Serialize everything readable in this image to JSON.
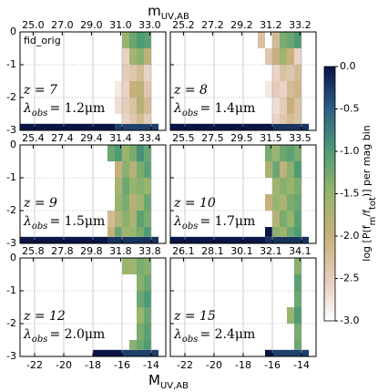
{
  "figure": {
    "x_label": {
      "main": "M",
      "sub": "UV,AB"
    },
    "top_label": {
      "main": "m",
      "sub": "UV,AB"
    },
    "colorscale": [
      [
        -3,
        "#ffffff"
      ],
      [
        -2.6,
        "#ead3c6"
      ],
      [
        -2.0,
        "#c8b07c"
      ],
      [
        -1.5,
        "#97b56c"
      ],
      [
        -1.0,
        "#4f9c74"
      ],
      [
        -0.5,
        "#2c5f86"
      ],
      [
        0,
        "#0a1446"
      ]
    ],
    "colorbar": {
      "clim": [
        -3,
        0
      ],
      "ticks": [
        {
          "value": 0,
          "label": "0.0"
        },
        {
          "value": -0.5,
          "label": "-0.5"
        },
        {
          "value": -1,
          "label": "-1.0"
        },
        {
          "value": -1.5,
          "label": "-1.5"
        },
        {
          "value": -2,
          "label": "-2.0"
        },
        {
          "value": -2.5,
          "label": "-2.5"
        },
        {
          "value": -3,
          "label": "-3.0"
        }
      ],
      "label": [
        {
          "text": "log [P(f"
        },
        {
          "text": "m",
          "sub": true
        },
        {
          "text": "/f"
        },
        {
          "text": "tot",
          "sub": true
        },
        {
          "text": ")] per mag bin"
        }
      ]
    }
  },
  "chart_data": [
    {
      "type": "heatmap",
      "note_label": "fid_orig",
      "redshift": "z = 7",
      "wavelength": [
        "λ",
        "obs",
        "= 1.2μm"
      ],
      "xlim": [
        -23,
        -13
      ],
      "ylim": [
        -3,
        0
      ],
      "x2lim": [
        24.1,
        34.1
      ],
      "x2ticks": [
        {
          "value": 25,
          "label": "25.0"
        },
        {
          "value": 27,
          "label": "27.0"
        },
        {
          "value": 29,
          "label": "29.0"
        },
        {
          "value": 31,
          "label": "31.0"
        },
        {
          "value": 33,
          "label": "33.0"
        }
      ],
      "xticks": [
        -22,
        -20,
        -18,
        -16,
        -14
      ],
      "yticks": [
        0,
        -1,
        -2,
        -3
      ],
      "xtick_labels": false,
      "ytick_labels": true,
      "grid": true,
      "x_bins": [
        -23,
        -18.5,
        -18,
        -17.5,
        -17,
        -16.5,
        -16,
        -15.5,
        -15,
        -14.5,
        -14,
        -13.5
      ],
      "y_bins": [
        -3,
        -2.8,
        -2.5,
        -2,
        -1.5,
        -1,
        -0.5,
        0
      ],
      "values": [
        [
          0,
          0,
          0,
          0,
          0,
          -0.3,
          -0.3,
          -0.3,
          -0.3,
          -0.3,
          -0.3
        ],
        [
          null,
          null,
          null,
          null,
          null,
          null,
          -2.6,
          -2.4,
          -2.2,
          -2.5,
          null
        ],
        [
          null,
          null,
          null,
          null,
          null,
          -2.7,
          -2.5,
          -2.3,
          -1.8,
          -2.2,
          null
        ],
        [
          null,
          null,
          null,
          null,
          null,
          -2.8,
          -2.6,
          -2.0,
          -1.9,
          -2.4,
          null
        ],
        [
          null,
          null,
          null,
          null,
          null,
          null,
          -2.5,
          -2.4,
          -2.2,
          -2.6,
          null
        ],
        [
          null,
          null,
          null,
          null,
          null,
          null,
          -2.6,
          -1.6,
          -1.4,
          -1.9,
          null
        ],
        [
          null,
          null,
          null,
          null,
          null,
          null,
          -1.5,
          -1.2,
          -1.0,
          -1.1,
          null
        ]
      ]
    },
    {
      "type": "heatmap",
      "redshift": "z = 8",
      "wavelength": [
        "λ",
        "obs",
        "= 1.4μm"
      ],
      "xlim": [
        -23,
        -13
      ],
      "ylim": [
        -3,
        0
      ],
      "x2lim": [
        24.3,
        34.3
      ],
      "x2ticks": [
        {
          "value": 25.2,
          "label": "25.2"
        },
        {
          "value": 27.2,
          "label": "27.2"
        },
        {
          "value": 29.2,
          "label": "29.2"
        },
        {
          "value": 31.2,
          "label": "31.2"
        },
        {
          "value": 33.2,
          "label": "33.2"
        }
      ],
      "xticks": [
        -22,
        -20,
        -18,
        -16,
        -14
      ],
      "yticks": [
        0,
        -1,
        -2,
        -3
      ],
      "xtick_labels": false,
      "ytick_labels": false,
      "grid": true,
      "x_bins": [
        -23,
        -18.5,
        -18,
        -17.5,
        -17,
        -16.5,
        -16,
        -15.5,
        -15,
        -14.5,
        -14,
        -13.5
      ],
      "y_bins": [
        -3,
        -2.8,
        -2.5,
        -2,
        -1.5,
        -1,
        -0.5,
        0
      ],
      "values": [
        [
          0,
          0,
          0,
          0,
          0,
          0,
          -0.2,
          -0.2,
          -0.2,
          -0.2,
          -0.2
        ],
        [
          null,
          null,
          null,
          null,
          null,
          null,
          -2.6,
          -2.4,
          -2.2,
          -2.3,
          null
        ],
        [
          null,
          null,
          null,
          null,
          null,
          null,
          -2.7,
          -2.5,
          -2.0,
          -2.3,
          null
        ],
        [
          null,
          null,
          null,
          null,
          null,
          -2.8,
          -2.5,
          -2.6,
          -2.2,
          -2.1,
          null
        ],
        [
          null,
          null,
          null,
          null,
          null,
          null,
          -2.6,
          -2.3,
          -2.4,
          -2.2,
          null
        ],
        [
          null,
          null,
          null,
          null,
          null,
          -2.4,
          -2.0,
          -1.6,
          -2.0,
          -2.6,
          null
        ],
        [
          null,
          null,
          null,
          null,
          -2.3,
          null,
          -2.2,
          -1.3,
          -1.2,
          -1.0,
          null
        ]
      ]
    },
    {
      "type": "heatmap",
      "redshift": "z = 9",
      "wavelength": [
        "λ",
        "obs",
        "= 1.5μm"
      ],
      "xlim": [
        -23,
        -13
      ],
      "ylim": [
        -3,
        0
      ],
      "x2lim": [
        24.5,
        34.5
      ],
      "x2ticks": [
        {
          "value": 25.4,
          "label": "25.4"
        },
        {
          "value": 27.4,
          "label": "27.4"
        },
        {
          "value": 29.4,
          "label": "29.4"
        },
        {
          "value": 31.4,
          "label": "31.4"
        },
        {
          "value": 33.4,
          "label": "33.4"
        }
      ],
      "xticks": [
        -22,
        -20,
        -18,
        -16,
        -14
      ],
      "yticks": [
        0,
        -1,
        -2,
        -3
      ],
      "xtick_labels": false,
      "ytick_labels": true,
      "grid": true,
      "x_bins": [
        -23,
        -18.5,
        -18,
        -17.5,
        -17,
        -16.5,
        -16,
        -15.5,
        -15,
        -14.5,
        -14,
        -13.5
      ],
      "y_bins": [
        -3,
        -2.8,
        -2.5,
        -2,
        -1.5,
        -1,
        -0.5,
        0
      ],
      "values": [
        [
          0,
          0,
          0,
          0,
          -0.2,
          -0.2,
          -0.2,
          -0.2,
          -0.2,
          -0.2,
          -0.2
        ],
        [
          null,
          null,
          null,
          null,
          -2.0,
          -1.2,
          -1.6,
          -1.5,
          -1.3,
          -1.0,
          null
        ],
        [
          null,
          null,
          null,
          null,
          -2.2,
          -1.8,
          -1.4,
          -1.7,
          -1.1,
          -1.3,
          null
        ],
        [
          null,
          null,
          null,
          null,
          null,
          -1.5,
          -1.3,
          -1.8,
          -1.6,
          -1.2,
          null
        ],
        [
          null,
          null,
          null,
          null,
          null,
          -1.7,
          -1.2,
          -1.5,
          -1.4,
          -1.5,
          null
        ],
        [
          null,
          null,
          null,
          null,
          null,
          -2.0,
          -1.4,
          -1.8,
          -1.3,
          -1.1,
          null
        ],
        [
          null,
          null,
          null,
          null,
          -1.2,
          -1.0,
          -1.5,
          -1.3,
          -0.9,
          -1.2,
          null
        ]
      ]
    },
    {
      "type": "heatmap",
      "redshift": "z = 10",
      "wavelength": [
        "λ",
        "obs",
        "= 1.7μm"
      ],
      "xlim": [
        -23,
        -13
      ],
      "ylim": [
        -3,
        0
      ],
      "x2lim": [
        24.6,
        34.6
      ],
      "x2ticks": [
        {
          "value": 25.5,
          "label": "25.5"
        },
        {
          "value": 27.5,
          "label": "27.5"
        },
        {
          "value": 29.5,
          "label": "29.5"
        },
        {
          "value": 31.5,
          "label": "31.5"
        },
        {
          "value": 33.5,
          "label": "33.5"
        }
      ],
      "xticks": [
        -22,
        -20,
        -18,
        -16,
        -14
      ],
      "yticks": [
        0,
        -1,
        -2,
        -3
      ],
      "xtick_labels": false,
      "ytick_labels": false,
      "grid": true,
      "x_bins": [
        -23,
        -18.5,
        -18,
        -17.5,
        -17,
        -16.5,
        -16,
        -15.5,
        -15,
        -14.5,
        -14,
        -13.5
      ],
      "y_bins": [
        -3,
        -2.8,
        -2.5,
        -2,
        -1.5,
        -1,
        -0.5,
        0
      ],
      "values": [
        [
          0,
          0,
          0,
          0,
          0,
          -0.2,
          -0.2,
          -0.2,
          -0.2,
          -0.2,
          -0.2
        ],
        [
          null,
          null,
          null,
          null,
          null,
          0,
          -1.4,
          -1.6,
          -1.2,
          -1.0,
          null
        ],
        [
          null,
          null,
          null,
          null,
          null,
          null,
          -1.8,
          -1.3,
          -1.5,
          -1.1,
          null
        ],
        [
          null,
          null,
          null,
          null,
          null,
          -2.0,
          -1.5,
          -1.7,
          -1.3,
          -1.2,
          null
        ],
        [
          null,
          null,
          null,
          null,
          null,
          null,
          -1.6,
          -1.4,
          -1.5,
          -1.3,
          null
        ],
        [
          null,
          null,
          null,
          null,
          null,
          -1.7,
          -1.2,
          -1.9,
          -1.4,
          -1.0,
          null
        ],
        [
          null,
          null,
          null,
          null,
          null,
          -1.3,
          -1.5,
          -1.2,
          -1.1,
          -1.3,
          null
        ]
      ]
    },
    {
      "type": "heatmap",
      "redshift": "z = 12",
      "wavelength": [
        "λ",
        "obs",
        "= 2.0μm"
      ],
      "xlim": [
        -23,
        -13
      ],
      "ylim": [
        -3,
        0
      ],
      "x2lim": [
        24.9,
        34.9
      ],
      "x2ticks": [
        {
          "value": 25.8,
          "label": "25.8"
        },
        {
          "value": 27.8,
          "label": "27.8"
        },
        {
          "value": 29.8,
          "label": "29.8"
        },
        {
          "value": 31.8,
          "label": "31.8"
        },
        {
          "value": 33.8,
          "label": "33.8"
        }
      ],
      "xticks": [
        -22,
        -20,
        -18,
        -16,
        -14
      ],
      "yticks": [
        0,
        -1,
        -2,
        -3
      ],
      "xtick_labels": true,
      "ytick_labels": true,
      "grid": true,
      "x_bins": [
        -23,
        -18.5,
        -18,
        -17.5,
        -17,
        -16.5,
        -16,
        -15.5,
        -15,
        -14.5,
        -14,
        -13.5
      ],
      "y_bins": [
        -3,
        -2.8,
        -2.5,
        -2,
        -1.5,
        -1,
        -0.5,
        0
      ],
      "values": [
        [
          null,
          null,
          0,
          0,
          0,
          0,
          -0.3,
          -0.3,
          -0.3,
          -0.3,
          -0.3
        ],
        [
          null,
          null,
          null,
          null,
          null,
          null,
          null,
          -1.4,
          -1.2,
          -1.0,
          null
        ],
        [
          null,
          null,
          null,
          null,
          null,
          null,
          null,
          null,
          -1.3,
          -1.1,
          null
        ],
        [
          null,
          null,
          null,
          null,
          null,
          null,
          null,
          null,
          -1.5,
          -1.2,
          null
        ],
        [
          null,
          null,
          null,
          null,
          null,
          null,
          null,
          null,
          -1.2,
          -1.0,
          null
        ],
        [
          null,
          null,
          null,
          null,
          null,
          null,
          null,
          null,
          -1.4,
          -1.2,
          null
        ],
        [
          null,
          null,
          null,
          null,
          null,
          null,
          -1.5,
          -1.6,
          -1.3,
          -1.4,
          null
        ]
      ]
    },
    {
      "type": "heatmap",
      "redshift": "z = 15",
      "wavelength": [
        "λ",
        "obs",
        "= 2.4μm"
      ],
      "xlim": [
        -23,
        -13
      ],
      "ylim": [
        -3,
        0
      ],
      "x2lim": [
        25.2,
        35.2
      ],
      "x2ticks": [
        {
          "value": 26.1,
          "label": "26.1"
        },
        {
          "value": 28.1,
          "label": "28.1"
        },
        {
          "value": 30.1,
          "label": "30.1"
        },
        {
          "value": 32.1,
          "label": "32.1"
        },
        {
          "value": 34.1,
          "label": "34.1"
        }
      ],
      "xticks": [
        -22,
        -20,
        -18,
        -16,
        -14
      ],
      "yticks": [
        0,
        -1,
        -2,
        -3
      ],
      "xtick_labels": true,
      "ytick_labels": false,
      "grid": true,
      "x_bins": [
        -23,
        -18.5,
        -18,
        -17.5,
        -17,
        -16.5,
        -16,
        -15.5,
        -15,
        -14.5,
        -14,
        -13.5
      ],
      "y_bins": [
        -3,
        -2.8,
        -2.5,
        -2,
        -1.5,
        -1,
        -0.5,
        0
      ],
      "values": [
        [
          null,
          null,
          null,
          null,
          null,
          0,
          -0.3,
          -0.3,
          -0.3,
          -0.3,
          -0.3
        ],
        [
          null,
          null,
          null,
          null,
          null,
          null,
          null,
          null,
          null,
          -1.2,
          null
        ],
        [
          null,
          null,
          null,
          null,
          null,
          null,
          null,
          null,
          null,
          -1.3,
          null
        ],
        [
          null,
          null,
          null,
          null,
          null,
          null,
          null,
          null,
          -1.5,
          -1.0,
          null
        ],
        [
          null,
          null,
          null,
          null,
          null,
          null,
          null,
          null,
          null,
          -1.2,
          null
        ],
        [
          null,
          null,
          null,
          null,
          null,
          null,
          null,
          null,
          null,
          -1.1,
          null
        ],
        [
          null,
          null,
          null,
          null,
          null,
          null,
          null,
          null,
          null,
          -1.4,
          null
        ]
      ]
    }
  ]
}
